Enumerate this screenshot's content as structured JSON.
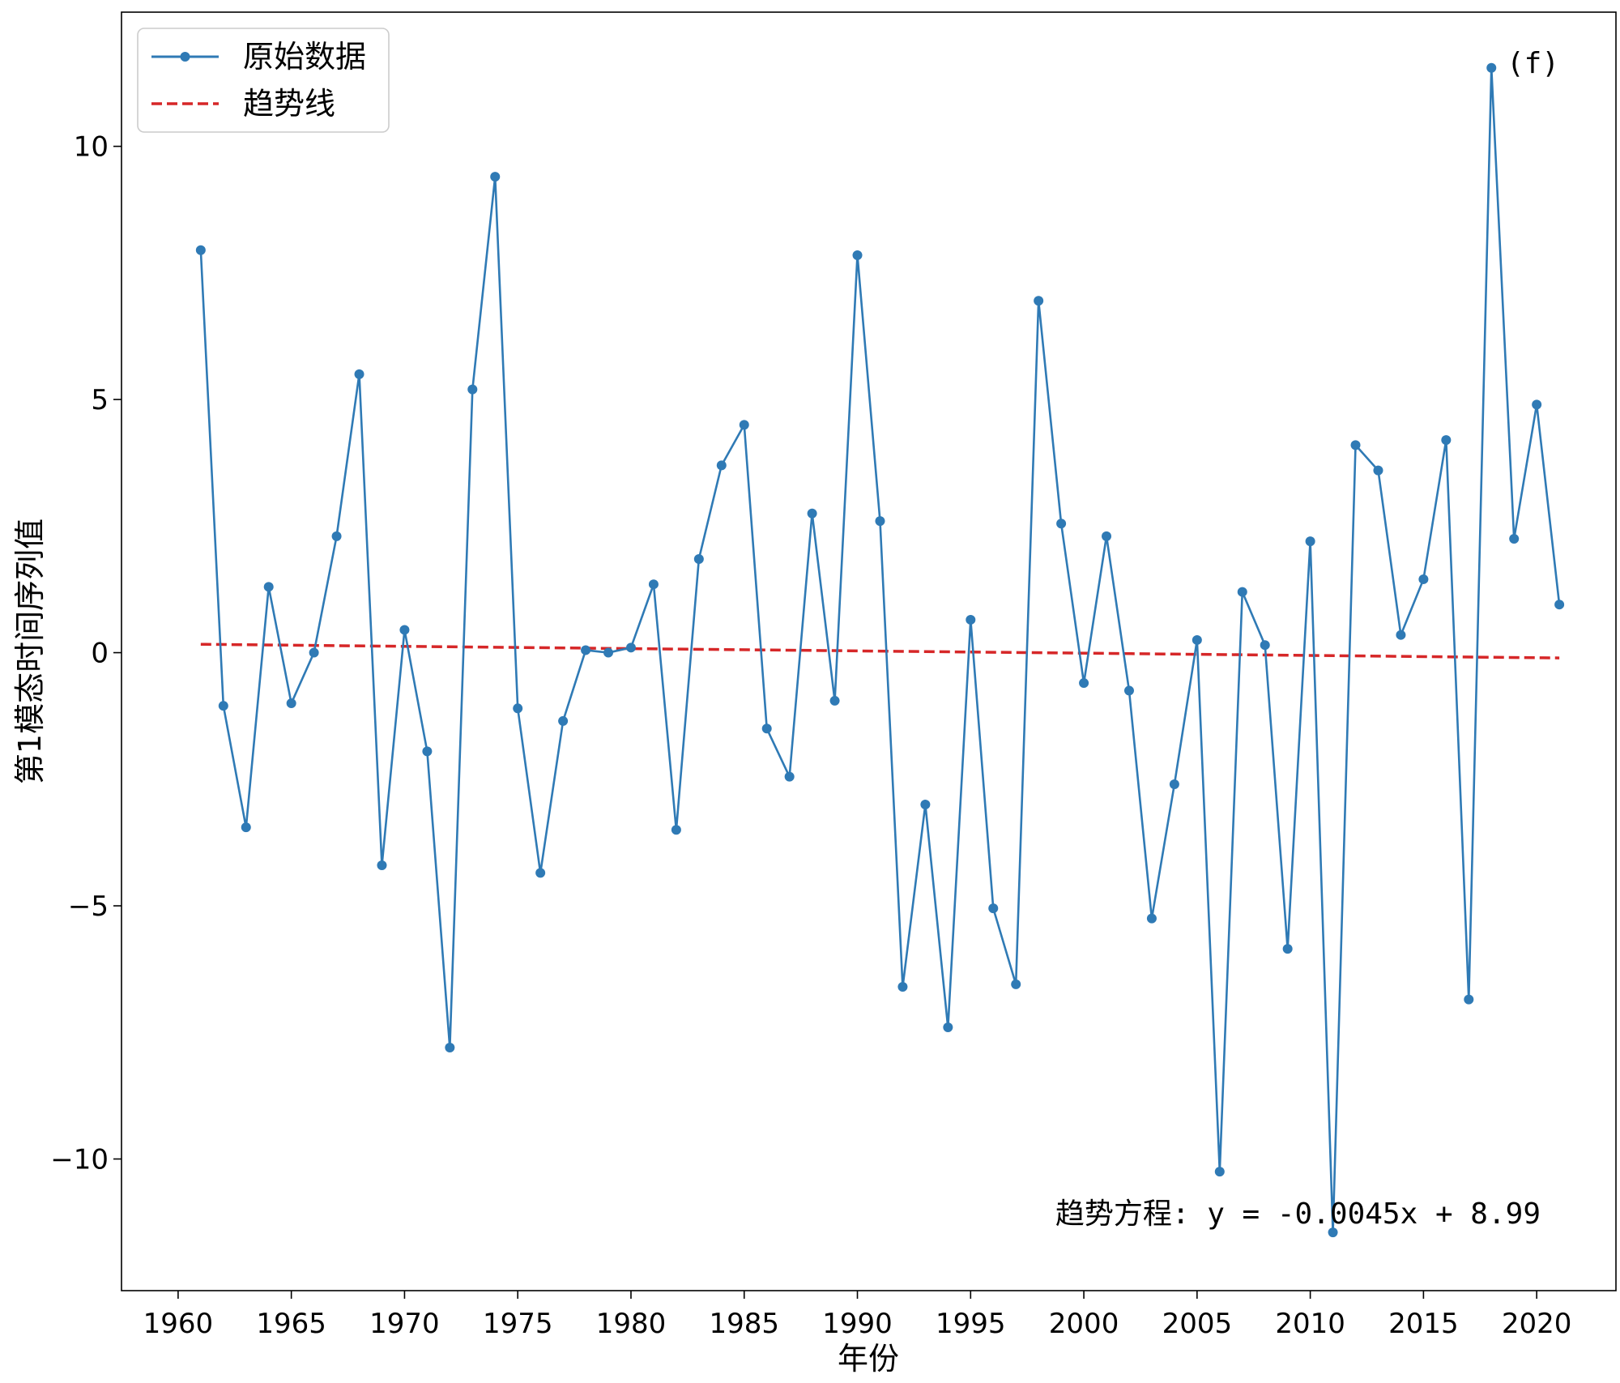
{
  "chart_data": {
    "type": "line",
    "panel_label": "(f)",
    "xlabel": "年份",
    "ylabel": "第1模态时间序列值",
    "xlim": [
      1957.5,
      2023.5
    ],
    "ylim": [
      -12.6,
      12.65
    ],
    "xticks": [
      1960,
      1965,
      1970,
      1975,
      1980,
      1985,
      1990,
      1995,
      2000,
      2005,
      2010,
      2015,
      2020
    ],
    "yticks": [
      -10,
      -5,
      0,
      5,
      10
    ],
    "ytick_labels": [
      "−10",
      "−5",
      "0",
      "5",
      "10"
    ],
    "grid": false,
    "legend_position": "top-left",
    "series": [
      {
        "name": "原始数据",
        "style": "solid-line-with-markers",
        "color": "#2f7ab5",
        "x": [
          1961,
          1962,
          1963,
          1964,
          1965,
          1966,
          1967,
          1968,
          1969,
          1970,
          1971,
          1972,
          1973,
          1974,
          1975,
          1976,
          1977,
          1978,
          1979,
          1980,
          1981,
          1982,
          1983,
          1984,
          1985,
          1986,
          1987,
          1988,
          1989,
          1990,
          1991,
          1992,
          1993,
          1994,
          1995,
          1996,
          1997,
          1998,
          1999,
          2000,
          2001,
          2002,
          2003,
          2004,
          2005,
          2006,
          2007,
          2008,
          2009,
          2010,
          2011,
          2012,
          2013,
          2014,
          2015,
          2016,
          2017,
          2018,
          2019,
          2020,
          2021
        ],
        "y": [
          7.95,
          -1.05,
          -3.45,
          1.3,
          -1.0,
          0.0,
          2.3,
          5.5,
          -4.2,
          0.45,
          -1.95,
          -7.8,
          5.2,
          9.4,
          -1.1,
          -4.35,
          -1.35,
          0.05,
          0.0,
          0.1,
          1.35,
          -3.5,
          1.85,
          3.7,
          4.5,
          -1.5,
          -2.45,
          2.75,
          -0.95,
          7.85,
          2.6,
          -6.6,
          -3.0,
          -7.4,
          0.65,
          -5.05,
          -6.55,
          6.95,
          2.55,
          -0.6,
          2.3,
          -0.75,
          -5.25,
          -2.6,
          0.25,
          -10.25,
          1.2,
          0.15,
          -5.85,
          2.2,
          -11.45,
          4.1,
          3.6,
          0.35,
          1.45,
          4.2,
          -6.85,
          11.55,
          2.25,
          4.9,
          0.95
        ]
      },
      {
        "name": "趋势线",
        "style": "dashed",
        "color": "#d62728",
        "slope": -0.0045,
        "intercept": 8.99,
        "x_range": [
          1961,
          2021
        ]
      }
    ],
    "annotation": "趋势方程: y = -0.0045x + 8.99"
  }
}
